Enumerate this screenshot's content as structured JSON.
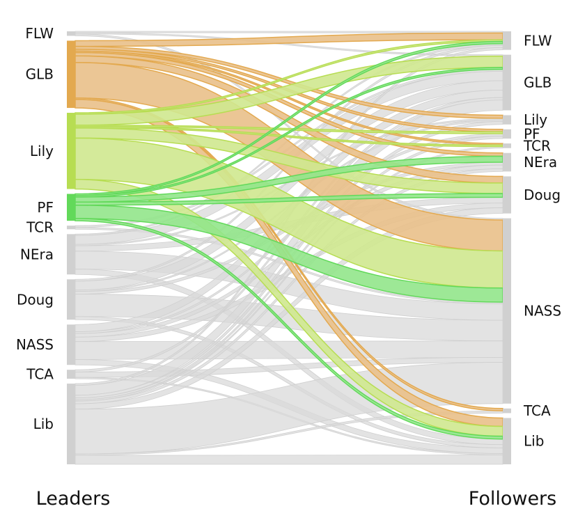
{
  "chart_data": {
    "type": "sankey",
    "title": "",
    "left_axis_label": "Leaders",
    "right_axis_label": "Followers",
    "highlighted_sources": [
      {
        "name": "GLB",
        "color": "#e3a94f",
        "fill": "#e9c08a"
      },
      {
        "name": "Lily",
        "color": "#b7dd52",
        "fill": "#cfe88f"
      },
      {
        "name": "PF",
        "color": "#62d95a",
        "fill": "#92e68b"
      }
    ],
    "other_flow_color": "#d9d9d9",
    "node_bar_color": "#d0d0d0",
    "sources": [
      {
        "name": "FLW",
        "value": 1
      },
      {
        "name": "GLB",
        "value": 15
      },
      {
        "name": "Lily",
        "value": 17
      },
      {
        "name": "PF",
        "value": 6
      },
      {
        "name": "TCR",
        "value": 0.8
      },
      {
        "name": "NEra",
        "value": 9
      },
      {
        "name": "Doug",
        "value": 9
      },
      {
        "name": "NASS",
        "value": 9
      },
      {
        "name": "TCA",
        "value": 2
      },
      {
        "name": "Lib",
        "value": 18
      }
    ],
    "targets": [
      {
        "name": "FLW",
        "value": 4
      },
      {
        "name": "GLB",
        "value": 12
      },
      {
        "name": "Lily",
        "value": 2
      },
      {
        "name": "PF",
        "value": 2
      },
      {
        "name": "TCR",
        "value": 1
      },
      {
        "name": "NEra",
        "value": 4
      },
      {
        "name": "Doug",
        "value": 8
      },
      {
        "name": "NASS",
        "value": 40
      },
      {
        "name": "TCA",
        "value": 1
      },
      {
        "name": "Lib",
        "value": 10
      }
    ],
    "links": [
      {
        "source": "FLW",
        "target": "FLW",
        "value": 0.3
      },
      {
        "source": "FLW",
        "target": "GLB",
        "value": 0.3
      },
      {
        "source": "FLW",
        "target": "NASS",
        "value": 0.4
      },
      {
        "source": "GLB",
        "target": "FLW",
        "value": 1.2
      },
      {
        "source": "GLB",
        "target": "Lily",
        "value": 0.6
      },
      {
        "source": "GLB",
        "target": "PF",
        "value": 0.4
      },
      {
        "source": "GLB",
        "target": "TCR",
        "value": 0.3
      },
      {
        "source": "GLB",
        "target": "NEra",
        "value": 0.7
      },
      {
        "source": "GLB",
        "target": "Doug",
        "value": 1.4
      },
      {
        "source": "GLB",
        "target": "NASS",
        "value": 7.5
      },
      {
        "source": "GLB",
        "target": "TCA",
        "value": 0.3
      },
      {
        "source": "GLB",
        "target": "Lib",
        "value": 1.8
      },
      {
        "source": "Lily",
        "target": "FLW",
        "value": 0.3
      },
      {
        "source": "Lily",
        "target": "GLB",
        "value": 2.4
      },
      {
        "source": "Lily",
        "target": "PF",
        "value": 0.3
      },
      {
        "source": "Lily",
        "target": "TCR",
        "value": 0.3
      },
      {
        "source": "Lily",
        "target": "Doug",
        "value": 2.2
      },
      {
        "source": "Lily",
        "target": "NASS",
        "value": 9
      },
      {
        "source": "Lily",
        "target": "Lib",
        "value": 2.1
      },
      {
        "source": "PF",
        "target": "FLW",
        "value": 0.4
      },
      {
        "source": "PF",
        "target": "GLB",
        "value": 0.4
      },
      {
        "source": "PF",
        "target": "NEra",
        "value": 1.3
      },
      {
        "source": "PF",
        "target": "Doug",
        "value": 0.8
      },
      {
        "source": "PF",
        "target": "NASS",
        "value": 3.4
      },
      {
        "source": "PF",
        "target": "Lib",
        "value": 0.6
      },
      {
        "source": "TCR",
        "target": "GLB",
        "value": 0.4
      },
      {
        "source": "TCR",
        "target": "NASS",
        "value": 0.4
      },
      {
        "source": "NEra",
        "target": "FLW",
        "value": 0.3
      },
      {
        "source": "NEra",
        "target": "GLB",
        "value": 2
      },
      {
        "source": "NEra",
        "target": "Lily",
        "value": 0.3
      },
      {
        "source": "NEra",
        "target": "Doug",
        "value": 1.2
      },
      {
        "source": "NEra",
        "target": "NASS",
        "value": 4
      },
      {
        "source": "NEra",
        "target": "Lib",
        "value": 1.2
      },
      {
        "source": "Doug",
        "target": "FLW",
        "value": 0.4
      },
      {
        "source": "Doug",
        "target": "GLB",
        "value": 2
      },
      {
        "source": "Doug",
        "target": "Lily",
        "value": 0.3
      },
      {
        "source": "Doug",
        "target": "NEra",
        "value": 0.6
      },
      {
        "source": "Doug",
        "target": "NASS",
        "value": 5
      },
      {
        "source": "Doug",
        "target": "Lib",
        "value": 0.7
      },
      {
        "source": "NASS",
        "target": "GLB",
        "value": 1.6
      },
      {
        "source": "NASS",
        "target": "PF",
        "value": 0.4
      },
      {
        "source": "NASS",
        "target": "NEra",
        "value": 0.8
      },
      {
        "source": "NASS",
        "target": "Doug",
        "value": 1
      },
      {
        "source": "NASS",
        "target": "NASS",
        "value": 4
      },
      {
        "source": "NASS",
        "target": "Lib",
        "value": 1.2
      },
      {
        "source": "TCA",
        "target": "GLB",
        "value": 0.5
      },
      {
        "source": "TCA",
        "target": "NASS",
        "value": 1.2
      },
      {
        "source": "TCA",
        "target": "Lib",
        "value": 0.3
      },
      {
        "source": "Lib",
        "target": "FLW",
        "value": 0.4
      },
      {
        "source": "Lib",
        "target": "GLB",
        "value": 2.2
      },
      {
        "source": "Lib",
        "target": "Lily",
        "value": 0.6
      },
      {
        "source": "Lib",
        "target": "PF",
        "value": 0.4
      },
      {
        "source": "Lib",
        "target": "TCR",
        "value": 0.3
      },
      {
        "source": "Lib",
        "target": "NEra",
        "value": 0.6
      },
      {
        "source": "Lib",
        "target": "Doug",
        "value": 1.2
      },
      {
        "source": "Lib",
        "target": "NASS",
        "value": 10
      },
      {
        "source": "Lib",
        "target": "TCA",
        "value": 0.3
      },
      {
        "source": "Lib",
        "target": "Lib",
        "value": 2
      }
    ]
  }
}
